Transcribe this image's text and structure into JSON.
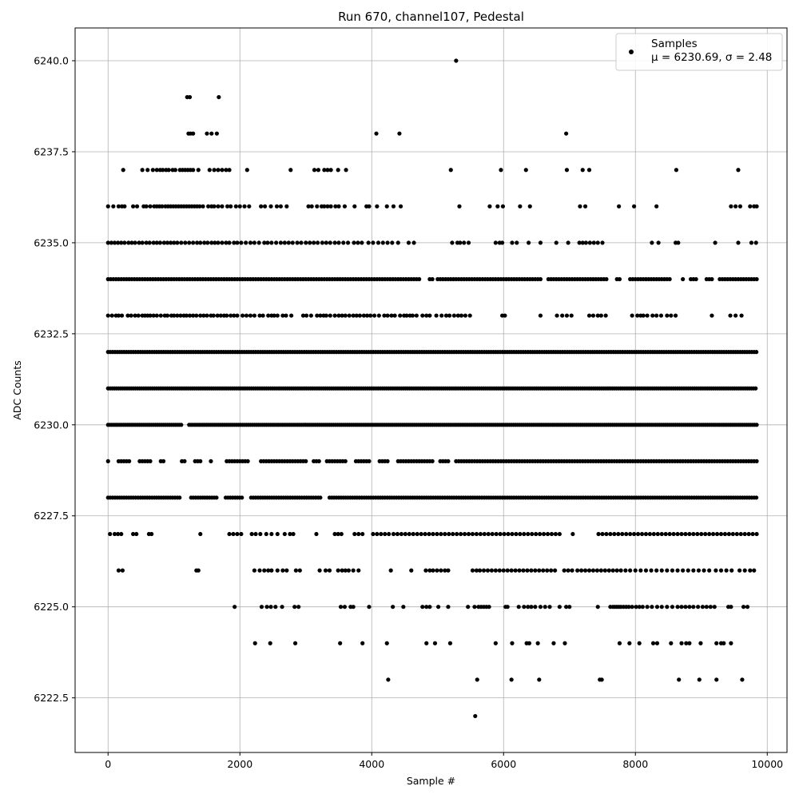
{
  "chart_data": {
    "type": "scatter",
    "title": "Run 670, channel107, Pedestal",
    "xlabel": "Sample #",
    "ylabel": "ADC Counts",
    "xlim": [
      -500,
      10300
    ],
    "ylim": [
      6221.0,
      6240.9
    ],
    "x_ticks": [
      0,
      2000,
      4000,
      6000,
      8000,
      10000
    ],
    "x_tick_labels": [
      "0",
      "2000",
      "4000",
      "6000",
      "8000",
      "10000"
    ],
    "y_ticks": [
      6222.5,
      6225.0,
      6227.5,
      6230.0,
      6232.5,
      6235.0,
      6237.5,
      6240.0
    ],
    "y_tick_labels": [
      "6222.5",
      "6225.0",
      "6227.5",
      "6230.0",
      "6232.5",
      "6235.0",
      "6237.5",
      "6240.0"
    ],
    "grid": true,
    "legend_position": "top-right",
    "series": [
      {
        "name": "Samples",
        "stats_label": "μ = 6230.69, σ = 2.48",
        "color": "#000000",
        "marker": "circle",
        "x_range": [
          0,
          9850
        ],
        "levels": [
          {
            "y": 6222,
            "samples": [
              5570
            ]
          },
          {
            "y": 6223,
            "samples": [
              4250,
              5600,
              6120,
              6540,
              7460,
              7490,
              8660,
              8970,
              9230,
              9620
            ]
          },
          {
            "y": 6224,
            "samples": [
              2230,
              2460,
              2840,
              3520,
              3860,
              4230,
              4830,
              4960,
              5190,
              5880,
              6130,
              6350,
              6390,
              6520,
              6760,
              6930,
              7760,
              7910,
              8060,
              8270,
              8330,
              8540,
              8700,
              8770,
              8820,
              8990,
              9230,
              9300,
              9340,
              9450
            ]
          },
          {
            "y": 6225,
            "samples": [
              1920,
              2330,
              2410,
              2470,
              2540,
              2640,
              2830,
              2890,
              3530,
              3590,
              3680,
              3720,
              3960,
              4320,
              4480,
              4770,
              4830,
              4880,
              5010,
              5160,
              5460,
              5560,
              5620,
              5660,
              5700,
              5740,
              5780,
              6030,
              6060,
              6230,
              6310,
              6370,
              6420,
              6480,
              6560,
              6630,
              6700,
              6850,
              6950,
              7000,
              7430,
              7620,
              7660,
              7690,
              7720,
              7750,
              7780,
              7820,
              7860,
              7900,
              7950,
              8010,
              8060,
              8110,
              8180,
              8250,
              8330,
              8400,
              8480,
              8560,
              8640,
              8700,
              8760,
              8820,
              8880,
              8950,
              9020,
              9080,
              9140,
              9200,
              9410,
              9450,
              9640,
              9700
            ]
          },
          {
            "y": 6226,
            "samples": [
              160,
              220,
              1340,
              1370,
              2220,
              2300,
              2370,
              2430,
              2480,
              2570,
              2650,
              2710,
              2850,
              2910,
              3210,
              3300,
              3360,
              3490,
              3550,
              3600,
              3650,
              3720,
              3800,
              4290,
              4600,
              4820,
              4880,
              4930,
              4990,
              5050,
              5110,
              5160,
              5530,
              5590,
              5640,
              5700,
              5760,
              5820,
              5880,
              5940,
              6000,
              6060,
              6120,
              6180,
              6240,
              6300,
              6360,
              6420,
              6480,
              6540,
              6600,
              6660,
              6720,
              6780,
              6920,
              6980,
              7040,
              7120,
              7180,
              7240,
              7300,
              7360,
              7420,
              7480,
              7540,
              7600,
              7660,
              7720,
              7780,
              7850,
              7920,
              8000,
              8080,
              8160,
              8240,
              8320,
              8400,
              8480,
              8560,
              8640,
              8720,
              8800,
              8880,
              8960,
              9040,
              9120,
              9220,
              9300,
              9380,
              9460,
              9580,
              9660,
              9740,
              9800
            ]
          },
          {
            "y": 6227,
            "samples": [
              30,
              100,
              150,
              200,
              380,
              430,
              620,
              660,
              1400,
              1840,
              1900,
              1960,
              2020,
              2180,
              2240,
              2310,
              2400,
              2480,
              2570,
              2680,
              2760,
              2810,
              3160,
              3440,
              3490,
              3540,
              3740,
              3800,
              3860,
              4020,
              4080,
              4140,
              4200,
              4260,
              4330,
              4390,
              4450,
              4510,
              4570,
              4630,
              4690,
              4750,
              4810,
              4870,
              4930,
              4990,
              5050,
              5110,
              5170,
              5230,
              5290,
              5350,
              5410,
              5470,
              5530,
              5590,
              5650,
              5710,
              5770,
              5830,
              5890,
              5950,
              6010,
              6070,
              6130,
              6190,
              6250,
              6310,
              6370,
              6430,
              6490,
              6550,
              6610,
              6670,
              6730,
              6790,
              6850,
              7050,
              7440,
              7500,
              7560,
              7620,
              7680,
              7740,
              7800,
              7860,
              7920,
              7980,
              8040,
              8100,
              8160,
              8220,
              8280,
              8340,
              8400,
              8460,
              8520,
              8580,
              8640,
              8700,
              8760,
              8820,
              8880,
              8940,
              9000,
              9060,
              9120,
              9180,
              9240,
              9300,
              9360,
              9420,
              9480,
              9540,
              9600,
              9660,
              9720,
              9780,
              9840
            ]
          },
          {
            "y": 6228,
            "samples_every": 35,
            "gaps": [
              [
                1110,
                1250
              ],
              [
                1650,
                1760
              ],
              [
                2040,
                2150
              ],
              [
                3230,
                3350
              ]
            ]
          },
          {
            "y": 6229,
            "samples_every": 40,
            "gaps": [
              [
                40,
                140
              ],
              [
                340,
                450
              ],
              [
                660,
                780
              ],
              [
                880,
                1100
              ],
              [
                1180,
                1280
              ],
              [
                1440,
                1520
              ],
              [
                1580,
                1770
              ],
              [
                2150,
                2290
              ],
              [
                3010,
                3090
              ],
              [
                3220,
                3290
              ],
              [
                3640,
                3720
              ],
              [
                3980,
                4080
              ],
              [
                4260,
                4360
              ],
              [
                4960,
                5030
              ],
              [
                5190,
                5270
              ]
            ]
          },
          {
            "y": 6230,
            "samples_every": 30,
            "gaps": [
              [
                1130,
                1210
              ]
            ]
          },
          {
            "y": 6231,
            "samples_every": 32,
            "gaps": []
          },
          {
            "y": 6232,
            "samples_every": 35,
            "gaps": []
          },
          {
            "y": 6233,
            "samples": [
              0,
              60,
              120,
              160,
              210,
              300,
              350,
              410,
              460,
              520,
              560,
              600,
              640,
              690,
              740,
              800,
              860,
              900,
              960,
              1000,
              1050,
              1100,
              1150,
              1190,
              1240,
              1290,
              1340,
              1400,
              1450,
              1500,
              1560,
              1600,
              1660,
              1710,
              1760,
              1800,
              1860,
              1910,
              1960,
              2040,
              2100,
              2160,
              2220,
              2300,
              2350,
              2430,
              2480,
              2520,
              2570,
              2650,
              2700,
              2780,
              2960,
              3010,
              3080,
              3170,
              3220,
              3270,
              3310,
              3370,
              3440,
              3500,
              3550,
              3600,
              3660,
              3720,
              3770,
              3820,
              3880,
              3930,
              3980,
              4040,
              4110,
              4190,
              4240,
              4300,
              4350,
              4430,
              4490,
              4530,
              4580,
              4620,
              4680,
              4770,
              4830,
              4880,
              4980,
              5060,
              5130,
              5180,
              5250,
              5310,
              5360,
              5420,
              5490,
              5980,
              6020,
              6560,
              6810,
              6890,
              6960,
              7030,
              7300,
              7360,
              7430,
              7480,
              7550,
              7950,
              8030,
              8080,
              8120,
              8180,
              8260,
              8320,
              8390,
              8480,
              8540,
              8610,
              9160,
              9440,
              9520,
              9610
            ]
          },
          {
            "y": 6234,
            "samples_every": 40,
            "gaps": [
              [
                4760,
                4860
              ],
              [
                4940,
                4990
              ],
              [
                6570,
                6640
              ],
              [
                7600,
                7700
              ],
              [
                7800,
                7900
              ],
              [
                8560,
                8680
              ],
              [
                8740,
                8800
              ],
              [
                8950,
                9040
              ],
              [
                9180,
                9240
              ]
            ]
          },
          {
            "y": 6235,
            "samples": [
              0,
              50,
              100,
              150,
              200,
              250,
              310,
              360,
              410,
              470,
              520,
              580,
              630,
              690,
              740,
              790,
              850,
              900,
              950,
              1000,
              1050,
              1110,
              1170,
              1230,
              1290,
              1350,
              1400,
              1460,
              1510,
              1570,
              1620,
              1670,
              1730,
              1790,
              1840,
              1910,
              1960,
              2020,
              2090,
              2160,
              2220,
              2290,
              2370,
              2420,
              2480,
              2550,
              2620,
              2680,
              2740,
              2800,
              2870,
              2930,
              3000,
              3060,
              3120,
              3180,
              3250,
              3310,
              3370,
              3440,
              3500,
              3570,
              3640,
              3730,
              3790,
              3850,
              3950,
              4020,
              4100,
              4170,
              4240,
              4310,
              4400,
              4560,
              4640,
              5220,
              5300,
              5340,
              5400,
              5470,
              5880,
              5940,
              5980,
              6130,
              6200,
              6380,
              6560,
              6800,
              6980,
              7150,
              7200,
              7250,
              7310,
              7370,
              7430,
              7500,
              8250,
              8350,
              8610,
              8650,
              9210,
              9560,
              9760,
              9830
            ]
          },
          {
            "y": 6236,
            "samples": [
              0,
              80,
              160,
              210,
              250,
              380,
              440,
              540,
              580,
              640,
              700,
              740,
              780,
              820,
              870,
              910,
              950,
              990,
              1030,
              1070,
              1110,
              1150,
              1190,
              1230,
              1270,
              1310,
              1350,
              1390,
              1440,
              1520,
              1570,
              1610,
              1670,
              1730,
              1810,
              1860,
              1940,
              2000,
              2070,
              2140,
              2320,
              2380,
              2470,
              2560,
              2620,
              2710,
              3040,
              3090,
              3170,
              3240,
              3280,
              3330,
              3380,
              3450,
              3500,
              3590,
              3740,
              3920,
              3960,
              4080,
              4230,
              4330,
              4440,
              5330,
              5790,
              5910,
              5990,
              6250,
              6400,
              7160,
              7240,
              7750,
              7980,
              8320,
              9450,
              9520,
              9590,
              9740,
              9800,
              9840
            ]
          },
          {
            "y": 6237,
            "samples": [
              230,
              520,
              600,
              680,
              740,
              790,
              830,
              880,
              920,
              980,
              1020,
              1090,
              1130,
              1170,
              1210,
              1250,
              1290,
              1370,
              1540,
              1610,
              1670,
              1730,
              1790,
              1840,
              2110,
              2770,
              3130,
              3190,
              3280,
              3330,
              3380,
              3490,
              3610,
              5200,
              5960,
              6340,
              6960,
              7200,
              7300,
              8620,
              9560
            ]
          },
          {
            "y": 6238,
            "samples": [
              1220,
              1250,
              1290,
              1500,
              1570,
              1650,
              4070,
              4420,
              6950
            ]
          },
          {
            "y": 6239,
            "samples": [
              1200,
              1240,
              1680
            ]
          },
          {
            "y": 6240,
            "samples": [
              5280
            ]
          }
        ]
      }
    ]
  }
}
